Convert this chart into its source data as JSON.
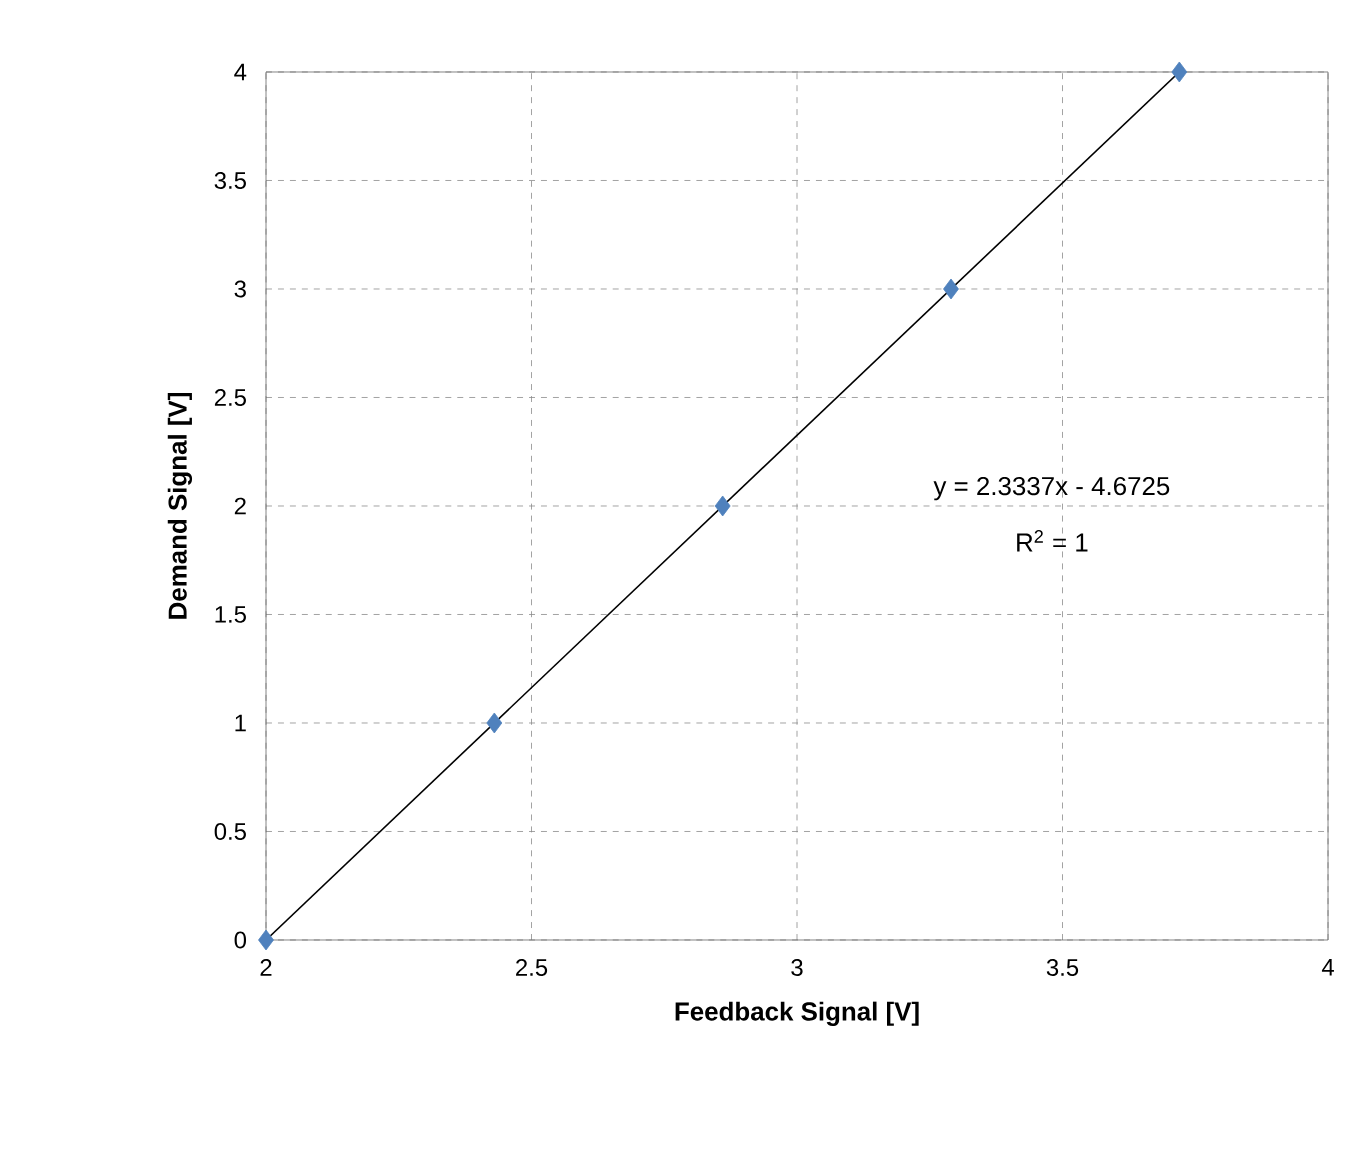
{
  "chart_data": {
    "type": "scatter",
    "xlabel": "Feedback Signal [V]",
    "ylabel": "Demand Signal [V]",
    "xlim": [
      2,
      4
    ],
    "ylim": [
      0,
      4
    ],
    "xticks": [
      2,
      2.5,
      3,
      3.5,
      4
    ],
    "yticks": [
      0,
      0.5,
      1,
      1.5,
      2,
      2.5,
      3,
      3.5,
      4
    ],
    "grid": true,
    "series": [
      {
        "marker": "diamond",
        "color": "#4f81bd",
        "x": [
          2.0,
          2.43,
          2.86,
          3.29,
          3.72
        ],
        "values": [
          0,
          1,
          2,
          3,
          4
        ]
      },
      {
        "type": "line",
        "marker": "none",
        "color": "#000000",
        "x": [
          2.0,
          3.72
        ],
        "values": [
          0,
          4
        ]
      }
    ],
    "annotations": [
      "y = 2.3337x - 4.6725",
      "R$^{2}$ = 1"
    ]
  }
}
